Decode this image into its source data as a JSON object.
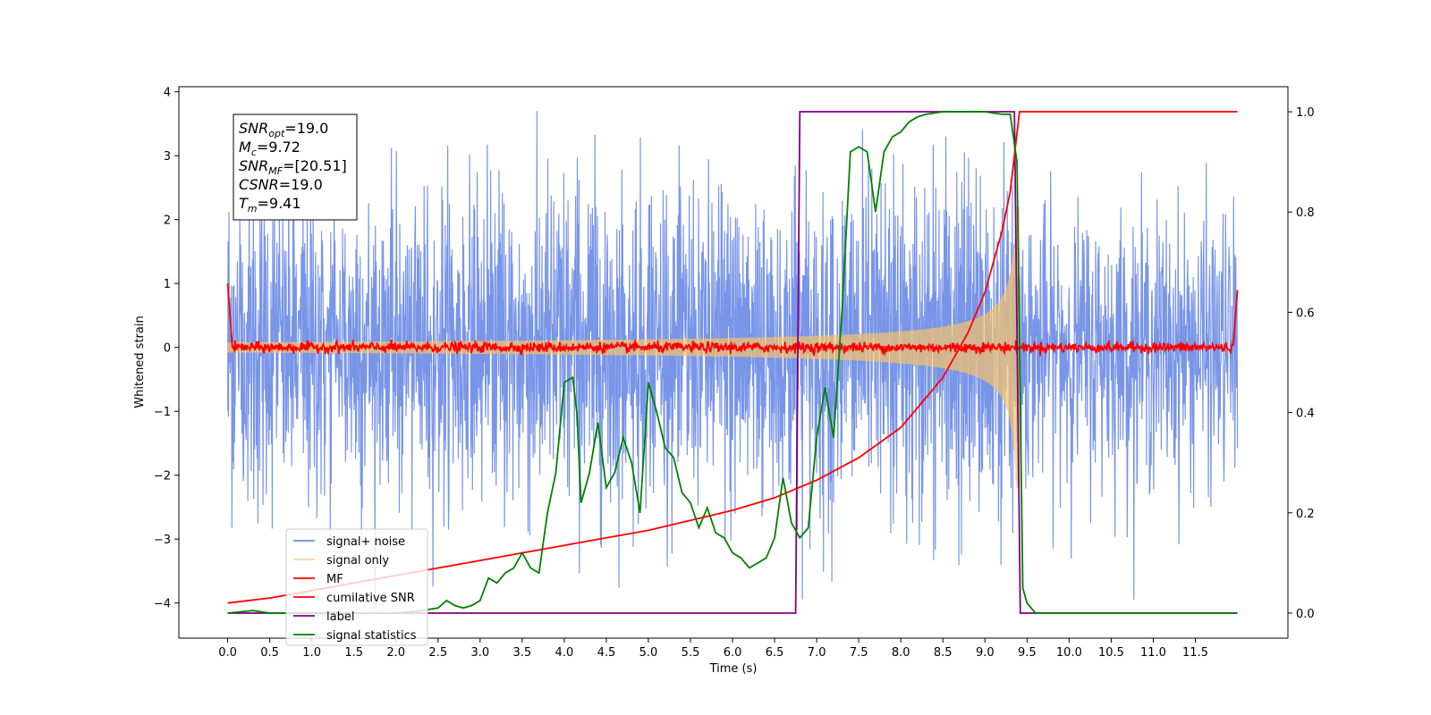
{
  "chart_data": {
    "type": "line",
    "title": "",
    "xlabel": "Time (s)",
    "ylabel": "Whitened strain",
    "xlim": [
      -0.58,
      12.6
    ],
    "ylim": [
      -4.55,
      4.08
    ],
    "y2lim": [
      -0.05,
      1.05
    ],
    "xticks": [
      "0.0",
      "0.5",
      "1.0",
      "1.5",
      "2.0",
      "2.5",
      "3.0",
      "3.5",
      "4.0",
      "4.5",
      "5.0",
      "5.5",
      "6.0",
      "6.5",
      "7.0",
      "7.5",
      "8.0",
      "8.5",
      "9.0",
      "9.5",
      "10.0",
      "10.5",
      "11.0",
      "11.5"
    ],
    "yticks": [
      "4",
      "3",
      "2",
      "1",
      "0",
      "−1",
      "−2",
      "−3",
      "−4"
    ],
    "y2ticks": [
      "1.0",
      "0.8",
      "0.6",
      "0.4",
      "0.2",
      "0.0"
    ],
    "grid": false,
    "legend_position": "lower-left",
    "series": [
      {
        "name": "signal+ noise",
        "color": "#6a89e6",
        "axis": "left",
        "x_range": [
          0,
          12.0
        ],
        "y_range": [
          -4.1,
          3.7
        ],
        "note_shape": "noise"
      },
      {
        "name": "signal only",
        "color": "#f5c36b",
        "axis": "left",
        "x_range": [
          0,
          9.41
        ],
        "amplitude_at_end": 3.1,
        "shape": "chirp"
      },
      {
        "name": "MF",
        "color": "#ff0000",
        "axis": "left",
        "x_range": [
          0,
          12.0
        ],
        "y_range": [
          -0.15,
          1.0
        ]
      },
      {
        "name": "cumilative SNR",
        "color": "#ff0000",
        "axis": "right",
        "x": [
          0.0,
          0.5,
          1.0,
          1.5,
          2.0,
          2.5,
          3.0,
          3.5,
          4.0,
          4.5,
          5.0,
          5.5,
          6.0,
          6.5,
          7.0,
          7.5,
          8.0,
          8.5,
          8.8,
          9.0,
          9.2,
          9.3,
          9.41,
          12.0
        ],
        "values": [
          0.02,
          0.03,
          0.045,
          0.06,
          0.075,
          0.09,
          0.105,
          0.12,
          0.135,
          0.15,
          0.165,
          0.185,
          0.205,
          0.23,
          0.265,
          0.31,
          0.37,
          0.47,
          0.56,
          0.64,
          0.76,
          0.84,
          1.0,
          1.0
        ]
      },
      {
        "name": "label",
        "color": "#800080",
        "axis": "right",
        "x": [
          0.0,
          6.75,
          6.8,
          9.35,
          9.42,
          12.0
        ],
        "values": [
          0.0,
          0.0,
          1.0,
          1.0,
          0.0,
          0.0
        ]
      },
      {
        "name": "signal statistics",
        "color": "#008000",
        "axis": "right",
        "x": [
          0.0,
          0.3,
          0.5,
          1.0,
          1.5,
          2.0,
          2.3,
          2.5,
          2.6,
          2.7,
          2.8,
          2.9,
          3.0,
          3.1,
          3.2,
          3.3,
          3.4,
          3.5,
          3.6,
          3.7,
          3.8,
          3.9,
          4.0,
          4.1,
          4.15,
          4.2,
          4.3,
          4.4,
          4.5,
          4.6,
          4.7,
          4.8,
          4.9,
          5.0,
          5.1,
          5.2,
          5.3,
          5.4,
          5.5,
          5.6,
          5.7,
          5.8,
          5.9,
          6.0,
          6.1,
          6.2,
          6.3,
          6.4,
          6.5,
          6.6,
          6.7,
          6.8,
          6.9,
          7.0,
          7.1,
          7.2,
          7.3,
          7.4,
          7.5,
          7.6,
          7.7,
          7.8,
          7.9,
          8.0,
          8.1,
          8.2,
          8.3,
          8.5,
          9.0,
          9.2,
          9.3,
          9.38,
          9.45,
          9.5,
          9.6,
          12.0
        ],
        "values": [
          0.0,
          0.005,
          0.0,
          0.0,
          0.0,
          0.0,
          0.005,
          0.01,
          0.025,
          0.015,
          0.01,
          0.015,
          0.025,
          0.07,
          0.06,
          0.08,
          0.09,
          0.12,
          0.09,
          0.08,
          0.2,
          0.28,
          0.46,
          0.47,
          0.4,
          0.22,
          0.28,
          0.38,
          0.25,
          0.28,
          0.35,
          0.3,
          0.2,
          0.46,
          0.4,
          0.33,
          0.31,
          0.24,
          0.22,
          0.17,
          0.21,
          0.16,
          0.15,
          0.12,
          0.11,
          0.09,
          0.1,
          0.11,
          0.15,
          0.27,
          0.18,
          0.15,
          0.17,
          0.35,
          0.45,
          0.35,
          0.6,
          0.92,
          0.93,
          0.92,
          0.8,
          0.92,
          0.95,
          0.96,
          0.98,
          0.99,
          0.995,
          1.0,
          1.0,
          0.995,
          0.995,
          0.9,
          0.05,
          0.02,
          0.0,
          0.0
        ]
      }
    ],
    "annotation": {
      "lines": [
        {
          "base": "SNR",
          "sub": "opt",
          "value": "=19.0"
        },
        {
          "base": "M",
          "sub": "c",
          "value": "=9.72"
        },
        {
          "base": "SNR",
          "sub": "MF",
          "value": "=[20.51]"
        },
        {
          "base": "CSNR",
          "sub": "",
          "value": "=19.0"
        },
        {
          "base": "T",
          "sub": "m",
          "value": "=9.41"
        }
      ]
    }
  }
}
